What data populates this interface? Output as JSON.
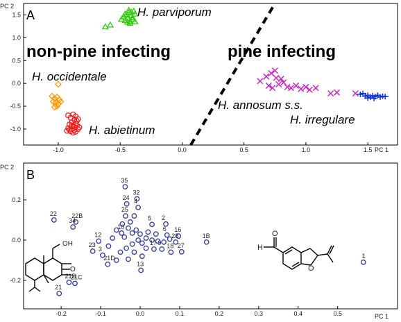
{
  "chart_data": [
    {
      "panel_label": "A",
      "type": "scatter",
      "xlabel": "PC 1",
      "ylabel": "PC 2",
      "xlim": [
        -1.28,
        1.74
      ],
      "ylim": [
        -1.35,
        1.75
      ],
      "xticks": [
        "-1.0",
        "-0.5",
        "0.0",
        "0.5",
        "1.0",
        "1.5"
      ],
      "yticks": [
        "1.5",
        "1.0",
        "0.5",
        "0.0",
        "-0.5",
        "-1.0"
      ],
      "group_labels": {
        "left": "non-pine infecting",
        "right": "pine infecting"
      },
      "annotations": [
        "H. parviporum",
        "H. occidentale",
        "H. abietinum",
        "H. annosum s.s.",
        "H. irregulare"
      ],
      "series": [
        {
          "label": "H. parviporum",
          "color": "#33cc11",
          "marker": "triangle",
          "x": [
            -0.49,
            -0.47,
            -0.46,
            -0.45,
            -0.44,
            -0.43,
            -0.42,
            -0.41,
            -0.4,
            -0.39,
            -0.38,
            -0.44,
            -0.42,
            -0.4,
            -0.38,
            -0.46,
            -0.43,
            -0.41,
            -0.58,
            -0.62
          ],
          "y": [
            1.4,
            1.46,
            1.38,
            1.5,
            1.42,
            1.55,
            1.36,
            1.48,
            1.44,
            1.58,
            1.52,
            1.34,
            1.32,
            1.4,
            1.35,
            1.52,
            1.6,
            1.56,
            1.28,
            1.24
          ]
        },
        {
          "label": "H. occidentale",
          "color": "#ff9900",
          "marker": "diamond",
          "x": [
            -1.0,
            -1.05,
            -1.03,
            -1.01,
            -0.99,
            -1.04,
            -1.02,
            -1.0,
            -0.98,
            -1.03,
            -1.01
          ],
          "y": [
            -0.02,
            -0.28,
            -0.33,
            -0.3,
            -0.36,
            -0.4,
            -0.42,
            -0.45,
            -0.4,
            -0.52,
            -0.5
          ]
        },
        {
          "label": "H. abietinum",
          "color": "#ee2222",
          "marker": "circle",
          "x": [
            -0.92,
            -0.88,
            -0.86,
            -0.9,
            -0.87,
            -0.84,
            -0.89,
            -0.86,
            -0.91,
            -0.88,
            -0.85,
            -0.92,
            -0.89,
            -0.87,
            -0.83,
            -0.9,
            -0.86,
            -0.88,
            -0.91,
            -0.84,
            -0.87,
            -0.89,
            -0.85,
            -0.93
          ],
          "y": [
            -0.7,
            -0.68,
            -0.72,
            -0.75,
            -0.8,
            -0.78,
            -0.85,
            -0.88,
            -0.9,
            -0.94,
            -0.92,
            -0.98,
            -1.0,
            -1.02,
            -0.96,
            -1.05,
            -1.06,
            -1.08,
            -1.02,
            -1.0,
            -0.95,
            -0.92,
            -0.82,
            -1.04
          ]
        },
        {
          "label": "H. annosum s.s.",
          "color": "#cc22cc",
          "marker": "x",
          "x": [
            0.63,
            0.68,
            0.72,
            0.75,
            0.8,
            0.7,
            0.73,
            0.78,
            0.85,
            0.92,
            0.96,
            1.0,
            1.03,
            1.08,
            1.2,
            1.25,
            1.4,
            0.76,
            0.82,
            0.88
          ],
          "y": [
            0.05,
            0.15,
            0.22,
            0.28,
            0.1,
            -0.05,
            -0.1,
            -0.02,
            -0.08,
            -0.05,
            -0.12,
            -0.08,
            -0.14,
            -0.1,
            -0.22,
            -0.2,
            -0.22,
            0.12,
            0.02,
            -0.1
          ]
        },
        {
          "label": "H. irregulare",
          "color": "#1133dd",
          "marker": "plus",
          "x": [
            1.44,
            1.48,
            1.5,
            1.52,
            1.54,
            1.56,
            1.58,
            1.6,
            1.62,
            1.64,
            1.5,
            1.55,
            1.46
          ],
          "y": [
            -0.24,
            -0.28,
            -0.26,
            -0.3,
            -0.27,
            -0.29,
            -0.26,
            -0.3,
            -0.28,
            -0.29,
            -0.32,
            -0.33,
            -0.22
          ]
        }
      ],
      "divider": {
        "style": "dashed",
        "x": [
          0.07,
          0.75
        ],
        "y": [
          -1.35,
          1.75
        ]
      }
    },
    {
      "panel_label": "B",
      "type": "scatter",
      "xlabel": "PC 1",
      "ylabel": "PC 2",
      "xlim": [
        -0.26,
        0.6
      ],
      "ylim": [
        -0.32,
        0.33
      ],
      "xticks": [
        "-0.2",
        "-0.1",
        "0.0",
        "0.1",
        "0.2",
        "0.3",
        "0.4",
        "0.5"
      ],
      "yticks": [
        "0.2",
        "0.0",
        "-0.2"
      ],
      "series": [
        {
          "name": "",
          "color": "#3a40a8",
          "marker": "circle",
          "points": [
            {
              "x": -0.038,
              "y": 0.265,
              "label": "35"
            },
            {
              "x": -0.008,
              "y": 0.205,
              "label": "32"
            },
            {
              "x": -0.034,
              "y": 0.18,
              "label": "24"
            },
            {
              "x": -0.005,
              "y": 0.162,
              "label": "4"
            },
            {
              "x": -0.037,
              "y": 0.12,
              "label": "25"
            },
            {
              "x": 0.03,
              "y": 0.078,
              "label": "5"
            },
            {
              "x": 0.065,
              "y": 0.08,
              "label": "2"
            },
            {
              "x": -0.047,
              "y": 0.035,
              "label": "10"
            },
            {
              "x": 0.068,
              "y": 0.025,
              "label": "6"
            },
            {
              "x": 0.097,
              "y": 0.02,
              "label": "16"
            },
            {
              "x": 0.09,
              "y": -0.01,
              "label": "28"
            },
            {
              "x": 0.168,
              "y": -0.01,
              "label": "1B"
            },
            {
              "x": -0.105,
              "y": -0.005,
              "label": "12"
            },
            {
              "x": -0.12,
              "y": -0.055,
              "label": "23"
            },
            {
              "x": 0.035,
              "y": -0.045,
              "label": "17"
            },
            {
              "x": 0.055,
              "y": -0.045,
              "label": "9"
            },
            {
              "x": 0.078,
              "y": -0.06,
              "label": "18"
            },
            {
              "x": 0.105,
              "y": -0.058,
              "label": "27"
            },
            {
              "x": -0.095,
              "y": -0.075,
              "label": "3"
            },
            {
              "x": -0.082,
              "y": -0.12,
              "label": "21D"
            },
            {
              "x": 0.002,
              "y": -0.15,
              "label": "13"
            },
            {
              "x": -0.218,
              "y": 0.1,
              "label": "22"
            },
            {
              "x": -0.163,
              "y": 0.09,
              "label": "22B"
            },
            {
              "x": -0.17,
              "y": 0.065,
              "label": "34"
            },
            {
              "x": -0.18,
              "y": -0.21,
              "label": "21B"
            },
            {
              "x": -0.165,
              "y": -0.215,
              "label": "21C"
            },
            {
              "x": -0.205,
              "y": -0.265,
              "label": "21"
            },
            {
              "x": 0.565,
              "y": -0.11,
              "label": "1"
            },
            {
              "x": -0.045,
              "y": 0.08,
              "label": ""
            },
            {
              "x": -0.06,
              "y": 0.05,
              "label": ""
            },
            {
              "x": -0.025,
              "y": 0.09,
              "label": ""
            },
            {
              "x": -0.015,
              "y": 0.12,
              "label": ""
            },
            {
              "x": -0.03,
              "y": 0.06,
              "label": ""
            },
            {
              "x": -0.01,
              "y": 0.05,
              "label": ""
            },
            {
              "x": 0.0,
              "y": 0.03,
              "label": ""
            },
            {
              "x": 0.015,
              "y": 0.01,
              "label": ""
            },
            {
              "x": 0.03,
              "y": 0.0,
              "label": ""
            },
            {
              "x": 0.045,
              "y": -0.005,
              "label": ""
            },
            {
              "x": 0.06,
              "y": -0.01,
              "label": ""
            },
            {
              "x": -0.02,
              "y": -0.02,
              "label": ""
            },
            {
              "x": -0.035,
              "y": -0.04,
              "label": ""
            },
            {
              "x": -0.05,
              "y": -0.06,
              "label": ""
            },
            {
              "x": -0.015,
              "y": -0.06,
              "label": ""
            },
            {
              "x": 0.005,
              "y": -0.08,
              "label": ""
            },
            {
              "x": 0.015,
              "y": -0.04,
              "label": ""
            },
            {
              "x": -0.07,
              "y": 0.01,
              "label": ""
            },
            {
              "x": -0.08,
              "y": -0.03,
              "label": ""
            },
            {
              "x": -0.06,
              "y": -0.1,
              "label": ""
            },
            {
              "x": -0.03,
              "y": -0.095,
              "label": ""
            },
            {
              "x": 0.02,
              "y": 0.04,
              "label": ""
            },
            {
              "x": 0.04,
              "y": 0.03,
              "label": ""
            },
            {
              "x": -0.04,
              "y": 0.015,
              "label": ""
            },
            {
              "x": -0.005,
              "y": 0.0,
              "label": ""
            },
            {
              "x": 0.005,
              "y": -0.015,
              "label": ""
            },
            {
              "x": 0.075,
              "y": 0.005,
              "label": ""
            },
            {
              "x": -0.02,
              "y": 0.035,
              "label": ""
            }
          ]
        }
      ],
      "structures": [
        "sesquiterpene-structure",
        "benzofuran-aldehyde-structure"
      ],
      "structure_text": {
        "oh": "OH",
        "o": "O",
        "h": "H"
      }
    }
  ]
}
